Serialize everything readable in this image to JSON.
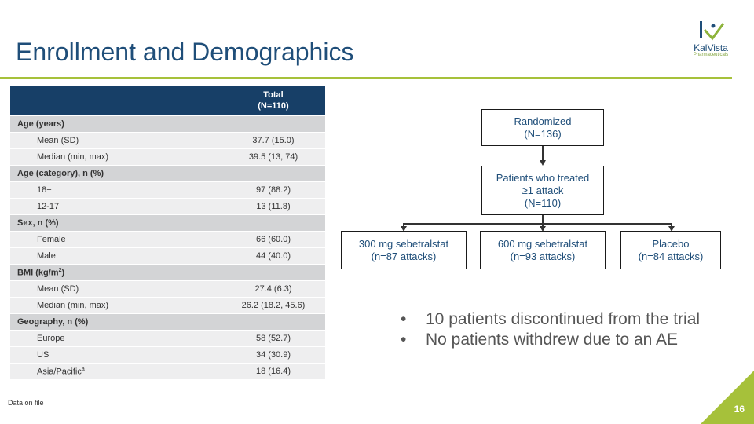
{
  "slide": {
    "title": "Enrollment and Demographics",
    "page_number": "16",
    "footnote": "Data on file"
  },
  "logo": {
    "name": "KalVista",
    "subtitle": "Pharmaceuticals"
  },
  "colors": {
    "accent_green": "#a6c13a",
    "navy": "#1f4e79",
    "table_header": "#173f67"
  },
  "table": {
    "header_line1": "Total",
    "header_line2": "(N=110)",
    "categories": [
      {
        "label": "Age (years)",
        "rows": [
          {
            "label": "Mean (SD)",
            "value": "37.7 (15.0)"
          },
          {
            "label": "Median (min, max)",
            "value": "39.5 (13, 74)"
          }
        ]
      },
      {
        "label": "Age (category), n (%)",
        "rows": [
          {
            "label": "18+",
            "value": "97 (88.2)"
          },
          {
            "label": "12-17",
            "value": "13 (11.8)"
          }
        ]
      },
      {
        "label": "Sex, n (%)",
        "rows": [
          {
            "label": "Female",
            "value": "66 (60.0)"
          },
          {
            "label": "Male",
            "value": "44 (40.0)"
          }
        ]
      },
      {
        "label": "BMI (kg/m",
        "label_sup": "2",
        "label_suffix": ")",
        "rows": [
          {
            "label": "Mean (SD)",
            "value": "27.4 (6.3)"
          },
          {
            "label": "Median (min, max)",
            "value": "26.2 (18.2, 45.6)"
          }
        ]
      },
      {
        "label": "Geography, n (%)",
        "rows": [
          {
            "label": "Europe",
            "value": "58 (52.7)"
          },
          {
            "label": "US",
            "value": "34 (30.9)"
          },
          {
            "label": "Asia/Pacific",
            "sup": "a",
            "value": "18 (16.4)"
          }
        ]
      }
    ]
  },
  "flowchart": {
    "randomized": {
      "line1": "Randomized",
      "line2": "(N=136)"
    },
    "treated": {
      "line1": "Patients who treated",
      "line2": "≥1 attack",
      "line3": "(N=110)"
    },
    "arms": [
      {
        "line1": "300 mg sebetralstat",
        "line2": "(n=87 attacks)"
      },
      {
        "line1": "600 mg sebetralstat",
        "line2": "(n=93 attacks)"
      },
      {
        "line1": "Placebo",
        "line2": "(n=84 attacks)"
      }
    ]
  },
  "bullets": [
    "10 patients discontinued from the trial",
    "No patients withdrew due to an AE"
  ]
}
